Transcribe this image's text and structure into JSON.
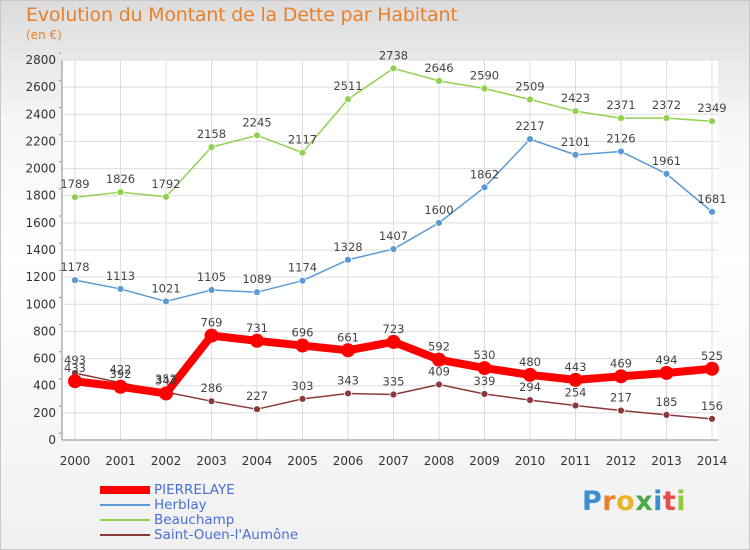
{
  "header": {
    "title": "Evolution du Montant de la Dette par Habitant",
    "subtitle": "(en €)"
  },
  "chart_data": {
    "type": "line",
    "x": [
      "2000",
      "2001",
      "2002",
      "2003",
      "2004",
      "2005",
      "2006",
      "2007",
      "2008",
      "2009",
      "2010",
      "2011",
      "2012",
      "2013",
      "2014"
    ],
    "ylim": [
      0,
      2800
    ],
    "yticks": [
      "0",
      "200",
      "400",
      "600",
      "800",
      "1000",
      "1200",
      "1400",
      "1600",
      "1800",
      "2000",
      "2200",
      "2400",
      "2600",
      "2800"
    ],
    "grid": true,
    "legend_position": "bottom-left",
    "series": [
      {
        "name": "PIERRELAYE",
        "color": "#ff0000",
        "values": [
          433,
          392,
          343,
          769,
          731,
          696,
          661,
          723,
          592,
          530,
          480,
          443,
          469,
          494,
          525
        ],
        "labels": [
          "433",
          "392",
          "343",
          "769",
          "731",
          "696",
          "661",
          "723",
          "592",
          "530",
          "480",
          "443",
          "469",
          "494",
          "525"
        ]
      },
      {
        "name": "Herblay",
        "color": "#5b9bd5",
        "values": [
          1178,
          1113,
          1021,
          1105,
          1089,
          1174,
          1328,
          1407,
          1600,
          1862,
          2217,
          2101,
          2126,
          1961,
          1681
        ],
        "labels": [
          "1178",
          "1113",
          "1021",
          "1105",
          "1089",
          "1174",
          "1328",
          "1407",
          "1600",
          "1862",
          "2217",
          "2101",
          "2126",
          "1961",
          "1681"
        ]
      },
      {
        "name": "Beauchamp",
        "color": "#92d050",
        "values": [
          1789,
          1826,
          1792,
          2158,
          2245,
          2117,
          2511,
          2738,
          2646,
          2590,
          2509,
          2423,
          2371,
          2372,
          2349
        ],
        "labels": [
          "1789",
          "1826",
          "1792",
          "2158",
          "2245",
          "2117",
          "2511",
          "2738",
          "2646",
          "2590",
          "2509",
          "2423",
          "2371",
          "2372",
          "2349"
        ]
      },
      {
        "name": "Saint-Ouen-l'Aumône",
        "color": "#8b3a3a",
        "values": [
          493,
          422,
          353,
          286,
          227,
          303,
          343,
          335,
          409,
          339,
          294,
          254,
          217,
          185,
          156
        ],
        "labels": [
          "493",
          "422",
          "353",
          "286",
          "227",
          "303",
          "343",
          "335",
          "409",
          "339",
          "294",
          "254",
          "217",
          "185",
          "156"
        ]
      }
    ]
  },
  "legend": {
    "items": [
      {
        "label": "PIERRELAYE",
        "color": "#ff0000"
      },
      {
        "label": "Herblay",
        "color": "#5b9bd5"
      },
      {
        "label": "Beauchamp",
        "color": "#92d050"
      },
      {
        "label": "Saint-Ouen-l'Aumône",
        "color": "#8b3a3a"
      }
    ]
  },
  "logo": {
    "letters": [
      "P",
      "r",
      "o",
      "x",
      "i",
      "t",
      "i"
    ],
    "colors": [
      "#3a8fd1",
      "#e8812a",
      "#e8b42a",
      "#4aa84a",
      "#3a8fd1",
      "#e84a4a",
      "#92c83a"
    ]
  }
}
